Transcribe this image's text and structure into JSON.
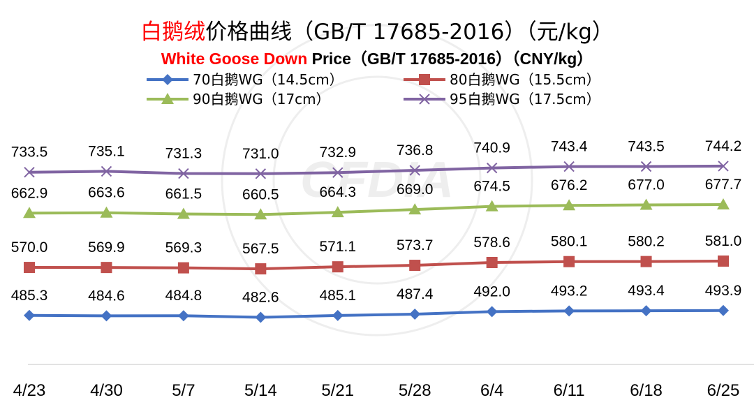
{
  "chart_data": {
    "type": "line",
    "title": {
      "cn_highlight": "白鹅绒",
      "cn_rest": "价格曲线（GB/T 17685-2016）（元/kg）",
      "en_highlight": "White Goose Down",
      "en_rest": " Price（GB/T 17685-2016）（CNY/kg）"
    },
    "x_labels": [
      "4/23",
      "4/30",
      "5/7",
      "5/14",
      "5/21",
      "5/28",
      "6/4",
      "6/11",
      "6/18",
      "6/25"
    ],
    "y_range": [
      420,
      760
    ],
    "grid": false,
    "legend_position": "top",
    "series": [
      {
        "name": "70白鹅WG（14.5cm）",
        "color": "#4472c4",
        "marker": "diamond",
        "values": [
          485.3,
          484.6,
          484.8,
          482.6,
          485.1,
          487.4,
          492.0,
          493.2,
          493.4,
          493.9
        ],
        "labels": [
          "485.3",
          "484.6",
          "484.8",
          "482.6",
          "485.1",
          "487.4",
          "492.0",
          "493.2",
          "493.4",
          "493.9"
        ]
      },
      {
        "name": "80白鹅WG（15.5cm）",
        "color": "#c0504d",
        "marker": "square",
        "values": [
          570.0,
          569.9,
          569.3,
          567.5,
          571.1,
          573.7,
          578.6,
          580.1,
          580.2,
          581.0
        ],
        "labels": [
          "570.0",
          "569.9",
          "569.3",
          "567.5",
          "571.1",
          "573.7",
          "578.6",
          "580.1",
          "580.2",
          "581.0"
        ]
      },
      {
        "name": "90白鹅WG（17cm）",
        "color": "#9bbb59",
        "marker": "triangle",
        "values": [
          662.9,
          663.6,
          661.5,
          660.5,
          664.3,
          669.0,
          674.5,
          676.2,
          677.0,
          677.7
        ],
        "labels": [
          "662.9",
          "663.6",
          "661.5",
          "660.5",
          "664.3",
          "669.0",
          "674.5",
          "676.2",
          "677.0",
          "677.7"
        ]
      },
      {
        "name": "95白鹅WG（17.5cm）",
        "color": "#8064a2",
        "marker": "x",
        "values": [
          733.5,
          735.1,
          731.3,
          731.0,
          732.9,
          736.8,
          740.9,
          743.4,
          743.5,
          744.2
        ],
        "labels": [
          "733.5",
          "735.1",
          "731.3",
          "731.0",
          "732.9",
          "736.8",
          "740.9",
          "743.4",
          "743.5",
          "744.2"
        ]
      }
    ],
    "watermark_text": "CHINA FEATHER AND DOWN INDUSTRIAL ASSOCIATION 中国羽绒工业协会 CFDIA"
  }
}
